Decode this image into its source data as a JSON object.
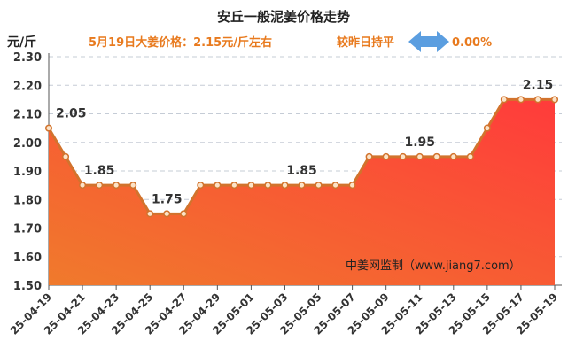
{
  "header": {
    "title": "安丘一般泥姜价格走势",
    "price_text": "5月19日大姜价格：2.15元/斤左右",
    "compare_text": "较昨日持平",
    "change_text": "0.00%",
    "unit_label": "元/斤",
    "watermark": "中姜网监制（www.jiang7.com）"
  },
  "colors": {
    "accent": "#e87a1e",
    "line": "#d2732d",
    "area_top": "#ff3b3b",
    "area_bottom": "#f07a2c",
    "arrow": "#5b9ee0",
    "grid": "#c5ccd6"
  },
  "chart_data": {
    "type": "area",
    "title": "安丘一般泥姜价格走势",
    "ylabel": "元/斤",
    "ylim": [
      1.5,
      2.3
    ],
    "yticks": [
      "1.50",
      "1.60",
      "1.70",
      "1.80",
      "1.90",
      "2.00",
      "2.10",
      "2.20",
      "2.30"
    ],
    "grid": true,
    "x": [
      "25-04-19",
      "25-04-20",
      "25-04-21",
      "25-04-22",
      "25-04-23",
      "25-04-24",
      "25-04-25",
      "25-04-26",
      "25-04-27",
      "25-04-28",
      "25-04-29",
      "25-04-30",
      "25-05-01",
      "25-05-02",
      "25-05-03",
      "25-05-04",
      "25-05-05",
      "25-05-06",
      "25-05-07",
      "25-05-08",
      "25-05-09",
      "25-05-10",
      "25-05-11",
      "25-05-12",
      "25-05-13",
      "25-05-14",
      "25-05-15",
      "25-05-16",
      "25-05-17",
      "25-05-18",
      "25-05-19"
    ],
    "xticks": [
      "25-04-19",
      "25-04-21",
      "25-04-23",
      "25-04-25",
      "25-04-27",
      "25-04-29",
      "25-05-01",
      "25-05-03",
      "25-05-05",
      "25-05-07",
      "25-05-09",
      "25-05-11",
      "25-05-13",
      "25-05-15",
      "25-05-17",
      "25-05-19"
    ],
    "values": [
      2.05,
      1.95,
      1.85,
      1.85,
      1.85,
      1.85,
      1.75,
      1.75,
      1.75,
      1.85,
      1.85,
      1.85,
      1.85,
      1.85,
      1.85,
      1.85,
      1.85,
      1.85,
      1.85,
      1.95,
      1.95,
      1.95,
      1.95,
      1.95,
      1.95,
      1.95,
      2.05,
      2.15,
      2.15,
      2.15,
      2.15
    ],
    "data_labels": [
      {
        "index": 0,
        "text": "2.05"
      },
      {
        "index": 3,
        "text": "1.85"
      },
      {
        "index": 7,
        "text": "1.75"
      },
      {
        "index": 15,
        "text": "1.85"
      },
      {
        "index": 22,
        "text": "1.95"
      },
      {
        "index": 29,
        "text": "2.15"
      }
    ]
  }
}
